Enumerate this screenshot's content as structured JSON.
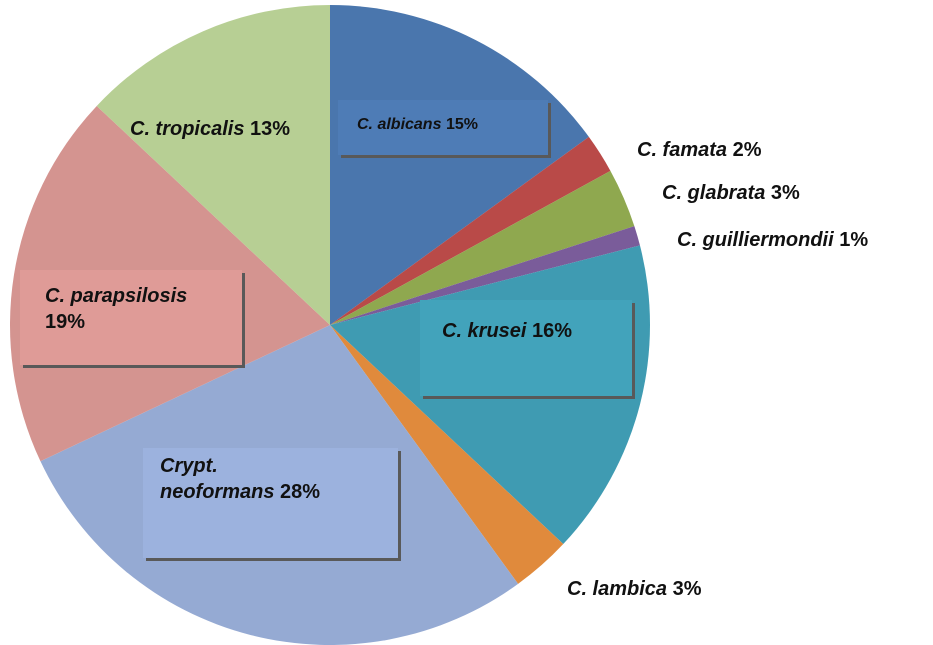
{
  "chart_data": {
    "type": "pie",
    "categories": [
      "C. albicans",
      "C. famata",
      "C. glabrata",
      "C. guilliermondii",
      "C. krusei",
      "C. lambica",
      "Crypt. neoformans",
      "C. parapsilosis",
      "C. tropicalis"
    ],
    "values": [
      15,
      2,
      3,
      1,
      16,
      3,
      28,
      19,
      13
    ],
    "value_labels": [
      "15%",
      "2%",
      "3%",
      "1%",
      "16%",
      "3%",
      "28%",
      "19%",
      "13%"
    ],
    "colors": [
      "#4a76ad",
      "#b94a48",
      "#8fa84f",
      "#7a5c9a",
      "#3f9bb2",
      "#e08a3c",
      "#95aad3",
      "#d49490",
      "#b7cf94"
    ]
  }
}
